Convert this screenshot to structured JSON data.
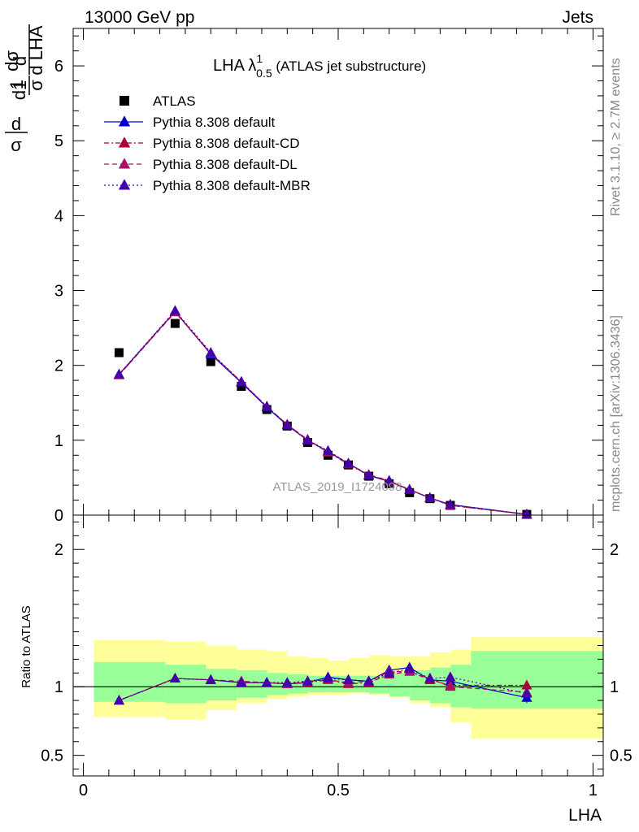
{
  "header": {
    "left": "13000 GeV pp",
    "right": "Jets"
  },
  "side_labels": {
    "rivet": "Rivet 3.1.10, ≥ 2.7M events",
    "mcplots": "mcplots.cern.ch [arXiv:1306.3436]"
  },
  "watermark": "ATLAS_2019_I1724098",
  "colors": {
    "atlas": "#000000",
    "default": "#0000cc",
    "cd": "#aa0033",
    "dl": "#aa1166",
    "mbr": "#4400aa",
    "band_inner": "#99ff99",
    "band_outer": "#ffff99"
  },
  "chart_data": [
    {
      "type": "scatter",
      "title_main": "LHA λ",
      "title_sup": "1",
      "title_sub": "0.5",
      "title_suffix": " (ATLAS jet substructure)",
      "ylabel": "1/σ dσ/d LHA",
      "ylim": [
        0,
        6.5
      ],
      "yticks": [
        "0",
        "1",
        "2",
        "3",
        "4",
        "5",
        "6"
      ],
      "xlim": [
        -0.02,
        1.02
      ],
      "x": [
        0.07,
        0.18,
        0.25,
        0.31,
        0.36,
        0.4,
        0.44,
        0.48,
        0.52,
        0.56,
        0.6,
        0.64,
        0.68,
        0.72,
        0.87
      ],
      "series": [
        {
          "name": "ATLAS",
          "key": "atlas",
          "style": "square",
          "values": [
            2.17,
            2.56,
            2.05,
            1.72,
            1.41,
            1.19,
            0.97,
            0.8,
            0.67,
            0.52,
            0.42,
            0.3,
            0.22,
            0.13,
            0.01
          ]
        },
        {
          "name": "Pythia 8.308 default",
          "key": "default",
          "style": "solid",
          "values": [
            1.88,
            2.72,
            2.15,
            1.77,
            1.44,
            1.2,
            1.0,
            0.85,
            0.69,
            0.53,
            0.45,
            0.34,
            0.23,
            0.14,
            0.01
          ]
        },
        {
          "name": "Pythia 8.308 default-CD",
          "key": "cd",
          "style": "dashdot",
          "values": [
            1.87,
            2.72,
            2.16,
            1.78,
            1.45,
            1.21,
            1.0,
            0.84,
            0.68,
            0.53,
            0.45,
            0.34,
            0.23,
            0.13,
            0.01
          ]
        },
        {
          "name": "Pythia 8.308 default-DL",
          "key": "dl",
          "style": "dashed",
          "values": [
            1.87,
            2.71,
            2.16,
            1.78,
            1.45,
            1.21,
            1.01,
            0.84,
            0.69,
            0.54,
            0.46,
            0.34,
            0.23,
            0.13,
            0.01
          ]
        },
        {
          "name": "Pythia 8.308 default-MBR",
          "key": "mbr",
          "style": "dotted",
          "values": [
            1.88,
            2.73,
            2.17,
            1.78,
            1.45,
            1.2,
            1.0,
            0.86,
            0.69,
            0.53,
            0.46,
            0.34,
            0.23,
            0.14,
            0.01
          ]
        }
      ]
    },
    {
      "type": "scatter",
      "ylabel": "Ratio to ATLAS",
      "xlabel": "LHA",
      "ylim": [
        0.35,
        2.25
      ],
      "yticks": [
        "0.5",
        "1",
        "2"
      ],
      "xlim": [
        -0.02,
        1.02
      ],
      "xticks": [
        "0",
        "0.5",
        "1"
      ],
      "x": [
        0.07,
        0.18,
        0.25,
        0.31,
        0.36,
        0.4,
        0.44,
        0.48,
        0.52,
        0.56,
        0.6,
        0.64,
        0.68,
        0.72,
        0.87
      ],
      "bands": {
        "edges": [
          0.0,
          0.14,
          0.22,
          0.28,
          0.34,
          0.38,
          0.42,
          0.46,
          0.5,
          0.54,
          0.58,
          0.62,
          0.66,
          0.7,
          0.74,
          1.0
        ],
        "inner_lo": [
          0.89,
          0.88,
          0.9,
          0.92,
          0.94,
          0.95,
          0.96,
          0.96,
          0.96,
          0.95,
          0.93,
          0.9,
          0.88,
          0.85,
          0.84
        ],
        "inner_hi": [
          1.18,
          1.16,
          1.13,
          1.12,
          1.1,
          1.09,
          1.08,
          1.08,
          1.08,
          1.08,
          1.1,
          1.12,
          1.14,
          1.16,
          1.26
        ],
        "outer_lo": [
          0.78,
          0.76,
          0.83,
          0.88,
          0.91,
          0.93,
          0.94,
          0.94,
          0.95,
          0.94,
          0.92,
          0.88,
          0.85,
          0.74,
          0.62
        ],
        "outer_hi": [
          1.34,
          1.33,
          1.3,
          1.27,
          1.26,
          1.22,
          1.21,
          1.19,
          1.21,
          1.23,
          1.22,
          1.22,
          1.25,
          1.27,
          1.36
        ]
      },
      "series": [
        {
          "key": "default",
          "style": "solid",
          "values": [
            0.9,
            1.06,
            1.05,
            1.03,
            1.03,
            1.02,
            1.03,
            1.07,
            1.05,
            1.04,
            1.12,
            1.14,
            1.05,
            1.04,
            0.92
          ],
          "err": [
            0,
            0,
            0,
            0,
            0,
            0,
            0,
            0,
            0,
            0,
            0,
            0.02,
            0.03,
            0.03,
            0.04
          ]
        },
        {
          "key": "cd",
          "style": "dashdot",
          "values": [
            0.9,
            1.06,
            1.05,
            1.03,
            1.03,
            1.02,
            1.03,
            1.05,
            1.02,
            1.03,
            1.09,
            1.11,
            1.05,
            1.01,
            1.01
          ],
          "err": [
            0,
            0,
            0,
            0,
            0,
            0,
            0,
            0,
            0,
            0,
            0,
            0.02,
            0.03,
            0.03,
            0.04
          ]
        },
        {
          "key": "dl",
          "style": "dashed",
          "values": [
            0.9,
            1.06,
            1.05,
            1.04,
            1.03,
            1.02,
            1.04,
            1.05,
            1.03,
            1.04,
            1.11,
            1.11,
            1.06,
            1.0,
            0.96
          ],
          "err": [
            0,
            0,
            0,
            0,
            0,
            0,
            0,
            0,
            0,
            0,
            0,
            0.02,
            0.03,
            0.03,
            0.04
          ]
        },
        {
          "key": "mbr",
          "style": "dotted",
          "values": [
            0.9,
            1.06,
            1.05,
            1.03,
            1.03,
            1.03,
            1.04,
            1.06,
            1.05,
            1.04,
            1.1,
            1.13,
            1.06,
            1.07,
            0.95
          ],
          "err": [
            0,
            0,
            0,
            0,
            0,
            0,
            0,
            0,
            0,
            0,
            0,
            0.02,
            0.03,
            0.03,
            0.04
          ]
        }
      ]
    }
  ]
}
